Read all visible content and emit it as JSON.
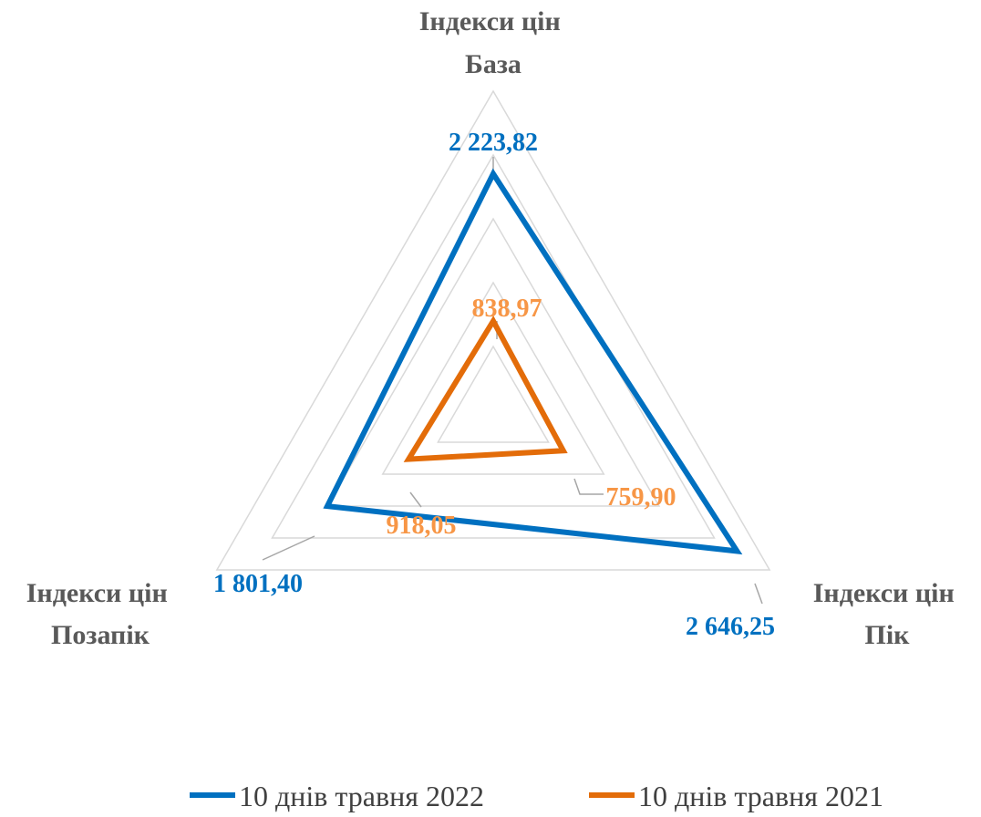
{
  "chart_data": {
    "type": "radar",
    "axes": [
      {
        "line1": "Індекси цін",
        "line2": "База"
      },
      {
        "line1": "Індекси цін",
        "line2": "Пік"
      },
      {
        "line1": "Індекси цін",
        "line2": "Позапік"
      }
    ],
    "series": [
      {
        "name": "10 днів травня 2022",
        "color": "#0070C0",
        "values": [
          2223.82,
          2646.25,
          1801.4
        ],
        "labels": [
          "2 223,82",
          "2 646,25",
          "1 801,40"
        ]
      },
      {
        "name": "10 днів травня 2021",
        "color": "#E36C09",
        "values": [
          838.97,
          759.9,
          918.05
        ],
        "labels": [
          "838,97",
          "759,90",
          "918,05"
        ]
      }
    ],
    "label_colors": [
      "#0070C0",
      "#F79646"
    ],
    "rmax": 3000,
    "grid_steps": 5,
    "grid": true,
    "legend_position": "bottom"
  }
}
